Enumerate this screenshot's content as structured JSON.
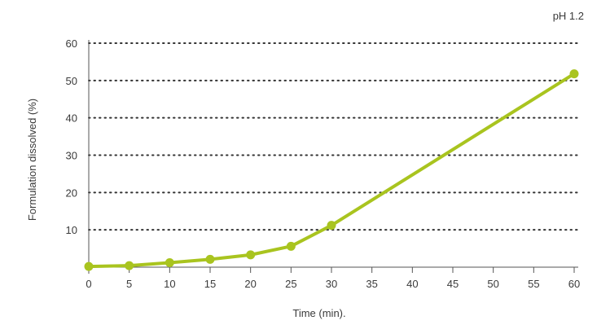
{
  "chart_data": {
    "type": "line",
    "title": "",
    "annotation": "pH 1.2",
    "xlabel": "Time (min).",
    "ylabel": "Formulation dissolved (%)",
    "x_ticks": [
      0,
      5,
      10,
      15,
      20,
      25,
      30,
      35,
      40,
      45,
      50,
      55,
      60
    ],
    "y_ticks": [
      10,
      20,
      30,
      40,
      50,
      60
    ],
    "xlim": [
      0,
      60
    ],
    "ylim": [
      0,
      60
    ],
    "grid": "horizontal-dotted",
    "colors": {
      "series": "#a9c41f",
      "grid": "#333333",
      "axis": "#555555"
    },
    "series": [
      {
        "x": [
          0,
          5,
          10,
          15,
          20,
          25,
          30,
          60
        ],
        "values": [
          0.2,
          0.4,
          1.2,
          2.1,
          3.3,
          5.6,
          11.2,
          51.8
        ]
      }
    ]
  }
}
